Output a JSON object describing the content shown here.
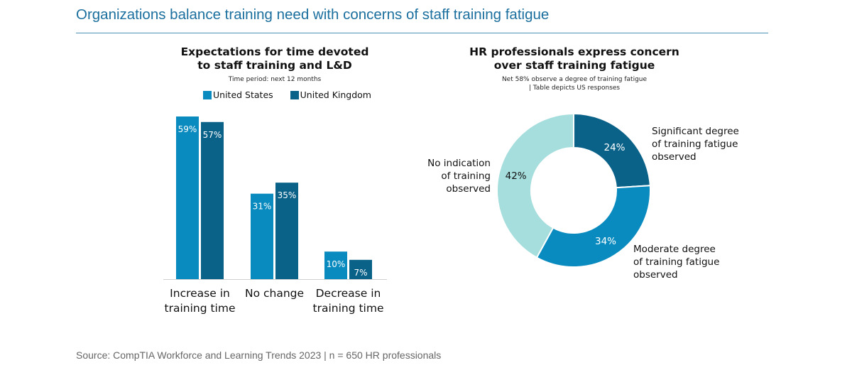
{
  "page": {
    "title": "Organizations balance training need with concerns of staff training fatigue",
    "source": "Source: CompTIA Workforce and Learning Trends 2023 | n = 650 HR professionals"
  },
  "colors": {
    "title": "#1b6f9e",
    "us": "#0a8bbf",
    "uk": "#0b6289",
    "significant": "#0b6289",
    "moderate": "#0a8bbf",
    "none": "#a5dedd"
  },
  "chart_data": [
    {
      "type": "bar",
      "title_line1": "Expectations for time devoted",
      "title_line2": "to staff training and L&D",
      "subtitle": "Time period: next 12 months",
      "categories": [
        "Increase in training time",
        "No change",
        "Decrease in training time"
      ],
      "category_lines": [
        [
          "Increase in",
          "training time"
        ],
        [
          "No change"
        ],
        [
          "Decrease in",
          "training time"
        ]
      ],
      "series": [
        {
          "name": "United States",
          "values": [
            59,
            31,
            10
          ],
          "labels": [
            "59%",
            "31%",
            "10%"
          ]
        },
        {
          "name": "United Kingdom",
          "values": [
            57,
            35,
            7
          ],
          "labels": [
            "57%",
            "35%",
            "7%"
          ]
        }
      ],
      "ylim": [
        0,
        59
      ],
      "unit": "%",
      "legend": "top"
    },
    {
      "type": "pie",
      "title_line1": "HR professionals express concern",
      "title_line2": "over staff training fatigue",
      "subtitle_line1": "Net 58% observe a degree of training fatigue",
      "subtitle_line2": "| Table depicts US responses",
      "slices": [
        {
          "label_lines": [
            "Significant degree",
            "of training fatigue",
            "observed"
          ],
          "value": 24,
          "pct": "24%"
        },
        {
          "label_lines": [
            "Moderate degree",
            "of training fatigue",
            "observed"
          ],
          "value": 34,
          "pct": "34%"
        },
        {
          "label_lines": [
            "No indication",
            "of training",
            "observed"
          ],
          "value": 42,
          "pct": "42%"
        }
      ],
      "donut": true
    }
  ]
}
